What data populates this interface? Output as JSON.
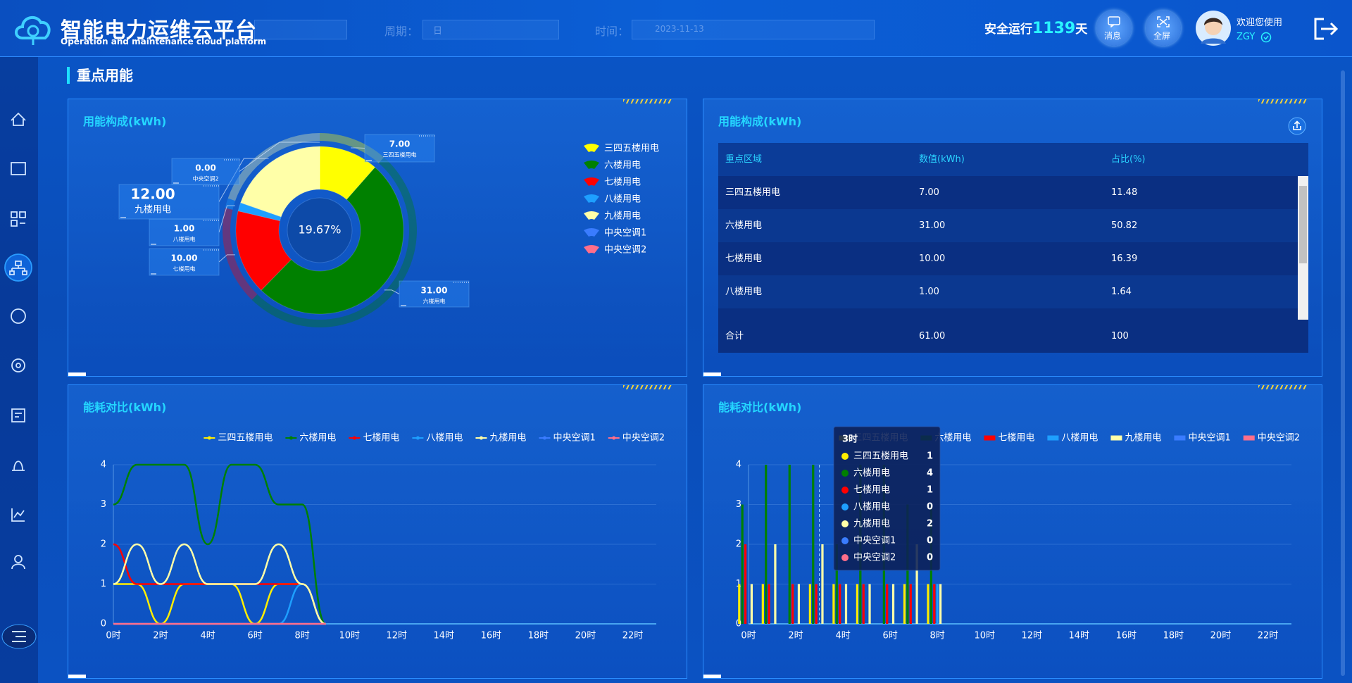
{
  "header": {
    "title": "智能电力运维云平台",
    "subtitle": "Operation and maintenance cloud platform",
    "period_label": "周期：",
    "period_value": "日",
    "time_label": "时间：",
    "time_value": "2023-11-13",
    "safe_prefix": "安全运行",
    "safe_days": "1139",
    "safe_suffix": "天",
    "message": "消息",
    "fullscreen": "全屏",
    "welcome": "欢迎您使用",
    "user": "ZGY"
  },
  "section_title": "重点用能",
  "table": {
    "title": "用能构成(kWh)",
    "columns": [
      "重点区域",
      "数值(kWh)",
      "占比(%)"
    ],
    "rows": [
      [
        "三四五楼用电",
        "7.00",
        "11.48"
      ],
      [
        "六楼用电",
        "31.00",
        "50.82"
      ],
      [
        "七楼用电",
        "10.00",
        "16.39"
      ],
      [
        "八楼用电",
        "1.00",
        "1.64"
      ]
    ],
    "total": [
      "合计",
      "61.00",
      "100"
    ]
  },
  "chart_data": [
    {
      "type": "pie",
      "title": "用能构成(kWh)",
      "donut": true,
      "categories": [
        "三四五楼用电",
        "六楼用电",
        "七楼用电",
        "八楼用电",
        "九楼用电",
        "中央空调1",
        "中央空调2"
      ],
      "values": [
        7,
        31,
        10,
        1,
        12,
        0,
        0
      ],
      "value_labels": [
        "7.00",
        "31.00",
        "10.00",
        "1.00",
        "12.00",
        null,
        "0.00"
      ],
      "colors": [
        "#ffff00",
        "#008000",
        "#ff0000",
        "#1e9fff",
        "#ffffa8",
        "#3a7cff",
        "#ff6e8a"
      ],
      "center_label": "19.67%"
    },
    {
      "type": "line",
      "title": "能耗对比(kWh)",
      "smooth": true,
      "grid": true,
      "xtick_interval": 2,
      "categories": [
        "0时",
        "1时",
        "2时",
        "3时",
        "4时",
        "5时",
        "6时",
        "7时",
        "8时",
        "9时",
        "10时",
        "11时",
        "12时",
        "13时",
        "14时",
        "15时",
        "16时",
        "17时",
        "18时",
        "19时",
        "20时",
        "21时",
        "22时",
        "23时"
      ],
      "ylim": [
        0,
        4
      ],
      "yticks": [
        0,
        1,
        2,
        3,
        4
      ],
      "series": [
        {
          "name": "三四五楼用电",
          "color": "#ffee00",
          "values": [
            1,
            1,
            0,
            1,
            1,
            1,
            0,
            1,
            1,
            0,
            null,
            null,
            null,
            null,
            null,
            null,
            null,
            null,
            null,
            null,
            null,
            null,
            null,
            null
          ]
        },
        {
          "name": "六楼用电",
          "color": "#008000",
          "values": [
            3,
            4,
            4,
            4,
            2,
            4,
            4,
            3,
            3,
            0,
            null,
            null,
            null,
            null,
            null,
            null,
            null,
            null,
            null,
            null,
            null,
            null,
            null,
            null
          ]
        },
        {
          "name": "七楼用电",
          "color": "#ff0000",
          "values": [
            2,
            1,
            1,
            1,
            1,
            1,
            1,
            1,
            1,
            0,
            null,
            null,
            null,
            null,
            null,
            null,
            null,
            null,
            null,
            null,
            null,
            null,
            null,
            null
          ]
        },
        {
          "name": "八楼用电",
          "color": "#1e9fff",
          "values": [
            0,
            0,
            0,
            0,
            0,
            0,
            0,
            0,
            1,
            0,
            null,
            null,
            null,
            null,
            null,
            null,
            null,
            null,
            null,
            null,
            null,
            null,
            null,
            null
          ]
        },
        {
          "name": "九楼用电",
          "color": "#ffffa8",
          "values": [
            1,
            2,
            1,
            2,
            1,
            1,
            1,
            2,
            1,
            0,
            null,
            null,
            null,
            null,
            null,
            null,
            null,
            null,
            null,
            null,
            null,
            null,
            null,
            null
          ]
        },
        {
          "name": "中央空调1",
          "color": "#3a7cff",
          "values": [
            0,
            0,
            0,
            0,
            0,
            0,
            0,
            0,
            0,
            0,
            null,
            null,
            null,
            null,
            null,
            null,
            null,
            null,
            null,
            null,
            null,
            null,
            null,
            null
          ]
        },
        {
          "name": "中央空调2",
          "color": "#ff6e8a",
          "values": [
            0,
            0,
            0,
            0,
            0,
            0,
            0,
            0,
            0,
            0,
            null,
            null,
            null,
            null,
            null,
            null,
            null,
            null,
            null,
            null,
            null,
            null,
            null,
            null
          ]
        }
      ]
    },
    {
      "type": "bar",
      "title": "能耗对比(kWh)",
      "grid": true,
      "xtick_interval": 2,
      "categories": [
        "0时",
        "1时",
        "2时",
        "3时",
        "4时",
        "5时",
        "6时",
        "7时",
        "8时",
        "9时",
        "10时",
        "11时",
        "12时",
        "13时",
        "14时",
        "15时",
        "16时",
        "17时",
        "18时",
        "19时",
        "20时",
        "21时",
        "22时",
        "23时"
      ],
      "ylim": [
        0,
        4
      ],
      "yticks": [
        0,
        1,
        2,
        3,
        4
      ],
      "tooltip": {
        "title": "3时"
      },
      "series": [
        {
          "name": "三四五楼用电",
          "color": "#ffee00",
          "values": [
            1,
            1,
            0,
            1,
            1,
            1,
            0,
            1,
            1,
            0,
            null,
            null,
            null,
            null,
            null,
            null,
            null,
            null,
            null,
            null,
            null,
            null,
            null,
            null
          ]
        },
        {
          "name": "六楼用电",
          "color": "#008000",
          "values": [
            3,
            4,
            4,
            4,
            2,
            4,
            4,
            3,
            3,
            0,
            null,
            null,
            null,
            null,
            null,
            null,
            null,
            null,
            null,
            null,
            null,
            null,
            null,
            null
          ]
        },
        {
          "name": "七楼用电",
          "color": "#ff0000",
          "values": [
            2,
            1,
            1,
            1,
            1,
            1,
            1,
            1,
            1,
            0,
            null,
            null,
            null,
            null,
            null,
            null,
            null,
            null,
            null,
            null,
            null,
            null,
            null,
            null
          ]
        },
        {
          "name": "八楼用电",
          "color": "#1e9fff",
          "values": [
            0,
            0,
            0,
            0,
            0,
            0,
            0,
            0,
            1,
            0,
            null,
            null,
            null,
            null,
            null,
            null,
            null,
            null,
            null,
            null,
            null,
            null,
            null,
            null
          ]
        },
        {
          "name": "九楼用电",
          "color": "#ffffa8",
          "values": [
            1,
            2,
            1,
            2,
            1,
            1,
            1,
            2,
            1,
            0,
            null,
            null,
            null,
            null,
            null,
            null,
            null,
            null,
            null,
            null,
            null,
            null,
            null,
            null
          ]
        },
        {
          "name": "中央空调1",
          "color": "#3a7cff",
          "values": [
            0,
            0,
            0,
            0,
            0,
            0,
            0,
            0,
            0,
            0,
            null,
            null,
            null,
            null,
            null,
            null,
            null,
            null,
            null,
            null,
            null,
            null,
            null,
            null
          ]
        },
        {
          "name": "中央空调2",
          "color": "#ff6e8a",
          "values": [
            0,
            0,
            0,
            0,
            0,
            0,
            0,
            0,
            0,
            0,
            null,
            null,
            null,
            null,
            null,
            null,
            null,
            null,
            null,
            null,
            null,
            null,
            null,
            null
          ]
        }
      ]
    }
  ]
}
